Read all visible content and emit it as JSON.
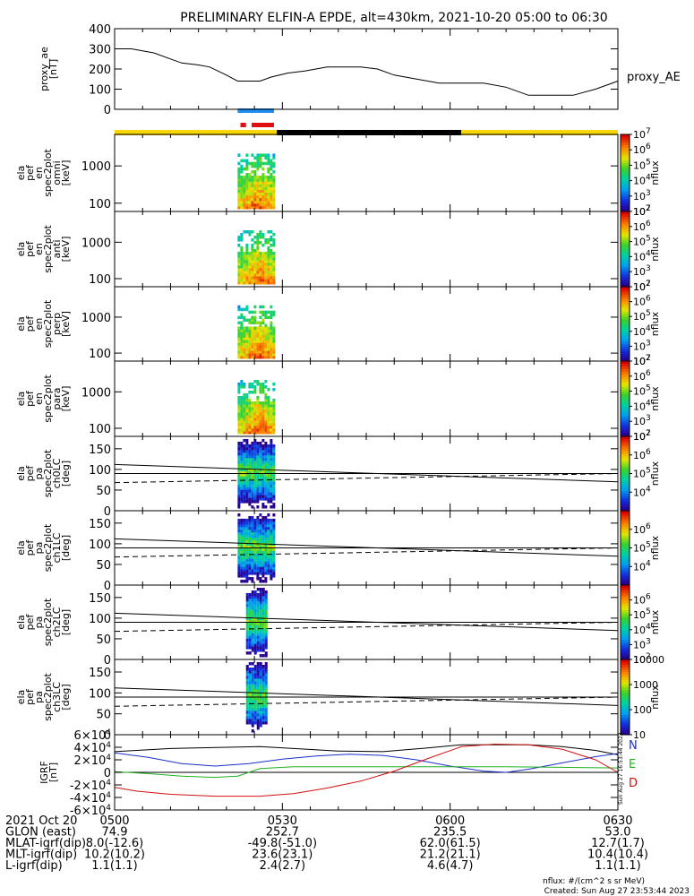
{
  "title": "PRELIMINARY ELFIN-A EPDE, alt=430km, 2021-10-20 05:00 to 06:30",
  "colors": {
    "fg": "#000000",
    "bg": "#ffffff",
    "sun_bar": "#f7d60a",
    "shadow_bar": "#000000",
    "science_blue": "#1f8ef0",
    "science_red": "#e01010",
    "bx": "#1a2ecc",
    "by": "#20b020",
    "bz": "#d01010",
    "bmag": "#000000"
  },
  "time_axis": {
    "start_label": "0500",
    "end_label": "0630",
    "ticks": [
      "0500",
      "0530",
      "0600",
      "0630"
    ],
    "tick_minutes": [
      0,
      30,
      60,
      90
    ],
    "span_minutes": 90
  },
  "orbit_bar": [
    {
      "kind": "sunlight",
      "from_min": 0,
      "to_min": 29
    },
    {
      "kind": "shadow",
      "from_min": 29,
      "to_min": 62
    },
    {
      "kind": "sunlight",
      "from_min": 62,
      "to_min": 90
    }
  ],
  "science_zones": [
    {
      "color": "blue",
      "from_min": 22,
      "to_min": 28.5
    },
    {
      "color": "red",
      "from_min": 22.5,
      "to_min": 23.5
    },
    {
      "color": "red",
      "from_min": 24.5,
      "to_min": 28.5
    }
  ],
  "chart_data": [
    {
      "type": "line",
      "panel": "proxy_ae",
      "ylabel_lines": [
        "proxy_ae",
        "[nT]"
      ],
      "ylim": [
        0,
        400
      ],
      "ytick_labels": [
        "0",
        "100",
        "200",
        "300",
        "400"
      ],
      "ytick_values": [
        0,
        100,
        200,
        300,
        400
      ],
      "legend": "proxy_AE",
      "x": [
        0,
        3,
        5,
        7,
        10,
        12,
        15,
        17,
        20,
        22,
        24,
        26,
        28,
        31,
        34,
        36,
        38,
        41,
        44,
        47,
        50,
        54,
        58,
        62,
        66,
        70,
        74,
        78,
        82,
        86,
        88,
        90
      ],
      "y": [
        300,
        300,
        290,
        280,
        250,
        230,
        220,
        210,
        170,
        140,
        140,
        140,
        160,
        180,
        190,
        200,
        210,
        210,
        210,
        200,
        170,
        150,
        130,
        130,
        130,
        110,
        70,
        70,
        70,
        100,
        120,
        140
      ]
    },
    {
      "type": "heatmap",
      "panel": "ela_pef_en_spec2plot_omni",
      "ylabel_lines": [
        "ela",
        "pef",
        "en",
        "spec2plot",
        "omni",
        "[keV]"
      ],
      "y_scale": "log",
      "ylim": [
        60,
        7000
      ],
      "ytick_labels": [
        "100",
        "1000"
      ],
      "ytick_values": [
        100,
        1000
      ],
      "colorbar": {
        "label": "nflux",
        "scale": "log",
        "range": [
          100,
          10000000
        ],
        "tick_labels": [
          "10^2",
          "10^3",
          "10^4",
          "10^5",
          "10^6",
          "10^7"
        ]
      },
      "active_window_min": [
        22,
        28.5
      ]
    },
    {
      "type": "heatmap",
      "panel": "ela_pef_en_spec2plot_anti",
      "ylabel_lines": [
        "ela",
        "pef",
        "en",
        "spec2plot",
        "anti",
        "[keV]"
      ],
      "y_scale": "log",
      "ylim": [
        60,
        7000
      ],
      "ytick_labels": [
        "100",
        "1000"
      ],
      "ytick_values": [
        100,
        1000
      ],
      "colorbar": {
        "label": "nflux",
        "scale": "log",
        "range": [
          100,
          10000000
        ],
        "tick_labels": [
          "10^2",
          "10^3",
          "10^4",
          "10^5",
          "10^6",
          "10^7"
        ]
      },
      "active_window_min": [
        22,
        28.5
      ]
    },
    {
      "type": "heatmap",
      "panel": "ela_pef_en_spec2plot_perp",
      "ylabel_lines": [
        "ela",
        "pef",
        "en",
        "spec2plot",
        "perp",
        "[keV]"
      ],
      "y_scale": "log",
      "ylim": [
        60,
        7000
      ],
      "ytick_labels": [
        "100",
        "1000"
      ],
      "ytick_values": [
        100,
        1000
      ],
      "colorbar": {
        "label": "nflux",
        "scale": "log",
        "range": [
          100,
          10000000
        ],
        "tick_labels": [
          "10^2",
          "10^3",
          "10^4",
          "10^5",
          "10^6",
          "10^7"
        ]
      },
      "active_window_min": [
        22,
        28.5
      ]
    },
    {
      "type": "heatmap",
      "panel": "ela_pef_en_spec2plot_para",
      "ylabel_lines": [
        "ela",
        "pef",
        "en",
        "spec2plot",
        "para",
        "[keV]"
      ],
      "y_scale": "log",
      "ylim": [
        60,
        7000
      ],
      "ytick_labels": [
        "100",
        "1000"
      ],
      "ytick_values": [
        100,
        1000
      ],
      "colorbar": {
        "label": "nflux",
        "scale": "log",
        "range": [
          100,
          10000000
        ],
        "tick_labels": [
          "10^2",
          "10^3",
          "10^4",
          "10^5",
          "10^6",
          "10^7"
        ]
      },
      "active_window_min": [
        22,
        28.5
      ]
    },
    {
      "type": "heatmap",
      "panel": "ela_pef_pa_spec2plot_ch0LC",
      "ylabel_lines": [
        "ela",
        "pef",
        "pa",
        "spec2plot",
        "ch0LC",
        "[deg]"
      ],
      "y_scale": "linear",
      "ylim": [
        0,
        180
      ],
      "ytick_labels": [
        "0",
        "50",
        "100",
        "150"
      ],
      "ytick_values": [
        0,
        50,
        100,
        150
      ],
      "colorbar": {
        "label": "nflux",
        "scale": "log",
        "range": [
          1000,
          10000000
        ],
        "tick_labels": [
          "10^4",
          "10^5",
          "10^6",
          "10^7"
        ]
      },
      "active_window_min": [
        22,
        28.5
      ],
      "lines": {
        "upper_start": 112,
        "upper_end": 70,
        "middle": 90,
        "dashed_start": 68,
        "dashed_end": 90
      }
    },
    {
      "type": "heatmap",
      "panel": "ela_pef_pa_spec2plot_ch1LC",
      "ylabel_lines": [
        "ela",
        "pef",
        "pa",
        "spec2plot",
        "ch1LC",
        "[deg]"
      ],
      "y_scale": "linear",
      "ylim": [
        0,
        180
      ],
      "ytick_labels": [
        "0",
        "50",
        "100",
        "150"
      ],
      "ytick_values": [
        0,
        50,
        100,
        150
      ],
      "colorbar": {
        "label": "nflux",
        "scale": "log",
        "range": [
          1000,
          10000000
        ],
        "tick_labels": [
          "10^4",
          "10^5",
          "10^6"
        ]
      },
      "active_window_min": [
        22,
        28.5
      ],
      "lines": {
        "upper_start": 112,
        "upper_end": 70,
        "middle": 90,
        "dashed_start": 68,
        "dashed_end": 90
      }
    },
    {
      "type": "heatmap",
      "panel": "ela_pef_pa_spec2plot_ch2LC",
      "ylabel_lines": [
        "ela",
        "pef",
        "pa",
        "spec2plot",
        "ch2LC",
        "[deg]"
      ],
      "y_scale": "linear",
      "ylim": [
        0,
        180
      ],
      "ytick_labels": [
        "0",
        "50",
        "100",
        "150"
      ],
      "ytick_values": [
        0,
        50,
        100,
        150
      ],
      "colorbar": {
        "label": "nflux",
        "scale": "log",
        "range": [
          100,
          10000000
        ],
        "tick_labels": [
          "10^2",
          "10^3",
          "10^4",
          "10^5",
          "10^6"
        ]
      },
      "active_window_min": [
        23.5,
        27.5
      ],
      "lines": {
        "upper_start": 112,
        "upper_end": 70,
        "middle": 90,
        "dashed_start": 68,
        "dashed_end": 90
      }
    },
    {
      "type": "heatmap",
      "panel": "ela_pef_pa_spec2plot_ch3LC",
      "ylabel_lines": [
        "ela",
        "pef",
        "pa",
        "spec2plot",
        "ch3LC",
        "[deg]"
      ],
      "y_scale": "linear",
      "ylim": [
        0,
        180
      ],
      "ytick_labels": [
        "0",
        "50",
        "100",
        "150"
      ],
      "ytick_values": [
        0,
        50,
        100,
        150
      ],
      "colorbar": {
        "label": "nflux",
        "scale": "log",
        "range": [
          10,
          10000
        ],
        "tick_labels": [
          "10",
          "100",
          "1000",
          "10000"
        ]
      },
      "active_window_min": [
        23.5,
        27.5
      ],
      "lines": {
        "upper_start": 112,
        "upper_end": 70,
        "middle": 90,
        "dashed_start": 68,
        "dashed_end": 90
      }
    },
    {
      "type": "line",
      "panel": "igrf",
      "ylabel_lines": [
        "IGRF",
        "[nT]"
      ],
      "ylim": [
        -60000,
        60000
      ],
      "ytick_labels": [
        "-6×10^4",
        "-4×10^4",
        "-2×10^4",
        "0",
        "2×10^4",
        "4×10^4",
        "6×10^4"
      ],
      "ytick_values": [
        -60000,
        -40000,
        -20000,
        0,
        20000,
        40000,
        60000
      ],
      "legend": [
        "N",
        "E",
        "D"
      ],
      "series": [
        {
          "color": "bmag",
          "x": [
            0,
            10,
            20,
            26,
            32,
            40,
            48,
            56,
            62,
            68,
            74,
            80,
            86,
            90
          ],
          "y": [
            33000,
            38000,
            40000,
            41000,
            38000,
            34000,
            33000,
            39000,
            44000,
            44000,
            44000,
            41000,
            35000,
            28000
          ]
        },
        {
          "color": "bx",
          "x": [
            0,
            6,
            12,
            18,
            24,
            30,
            36,
            42,
            48,
            54,
            60,
            66,
            70,
            74,
            80,
            86,
            90
          ],
          "y": [
            31000,
            24000,
            14000,
            10000,
            14000,
            21000,
            26000,
            29000,
            27000,
            20000,
            10000,
            2000,
            0,
            5000,
            15000,
            25000,
            30000
          ]
        },
        {
          "color": "by",
          "x": [
            0,
            6,
            12,
            18,
            22,
            26,
            32,
            40,
            50,
            60,
            70,
            80,
            90
          ],
          "y": [
            1000,
            -2000,
            -6000,
            -8000,
            -6000,
            6000,
            9000,
            9000,
            9000,
            9000,
            9000,
            8000,
            7000
          ]
        },
        {
          "color": "bz",
          "x": [
            0,
            4,
            10,
            18,
            26,
            32,
            38,
            44,
            50,
            56,
            62,
            68,
            74,
            80,
            86,
            90
          ],
          "y": [
            -24000,
            -30000,
            -35000,
            -38000,
            -38000,
            -34000,
            -25000,
            -14000,
            2000,
            22000,
            41000,
            45000,
            44000,
            37000,
            20000,
            0
          ]
        }
      ]
    }
  ],
  "footer": {
    "rows": [
      {
        "label": "2021 Oct 20",
        "values": [
          "0500",
          "0530",
          "0600",
          "0630"
        ]
      },
      {
        "label": "GLON (east)",
        "values": [
          "74.9",
          "252.7",
          "235.5",
          "53.0"
        ]
      },
      {
        "label": "MLAT-igrf(dip)",
        "values": [
          "8.0(-12.6)",
          "-49.8(-51.0)",
          "62.0(61.5)",
          "12.7(1.7)"
        ]
      },
      {
        "label": "MLT-igrf(dip)",
        "values": [
          "10.2(10.2)",
          "23.6(23.1)",
          "21.2(21.1)",
          "10.4(10.4)"
        ]
      },
      {
        "label": "L-igrf(dip)",
        "values": [
          "1.1(1.1)",
          "2.4(2.7)",
          "4.6(4.7)",
          "1.1(1.1)"
        ]
      }
    ],
    "units_note": "nflux: #/(cm^2 s sr MeV)",
    "created": "Created: Sun Aug 27 23:53:44 2023",
    "side_stamp": "Sun Aug 27 16:53:44 2023"
  }
}
